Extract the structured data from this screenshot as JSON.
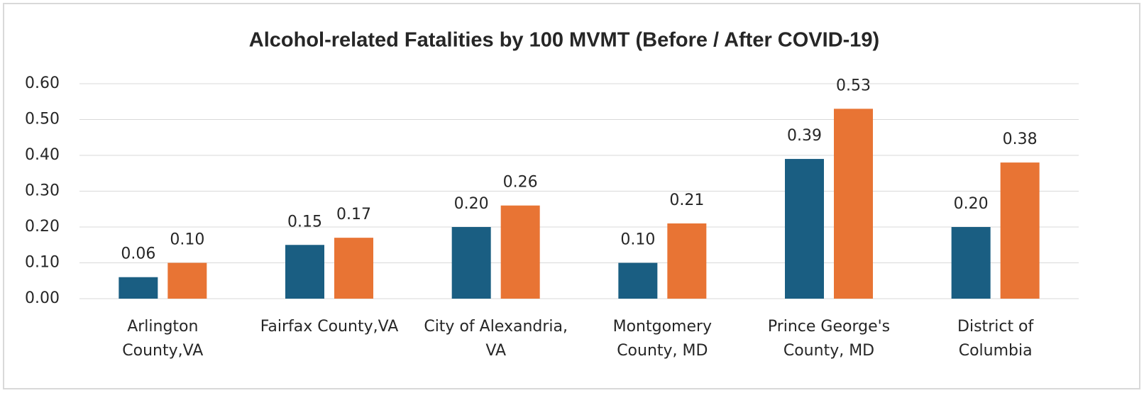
{
  "chart_data": {
    "type": "bar",
    "title": "Alcohol-related Fatalities by 100 MVMT (Before / After COVID-19)",
    "categories": [
      [
        "Arlington",
        "County,VA"
      ],
      [
        "Fairfax County,VA"
      ],
      [
        "City of Alexandria,",
        "VA"
      ],
      [
        "Montgomery",
        "County, MD"
      ],
      [
        "Prince George's",
        "County, MD"
      ],
      [
        "District of",
        "Columbia"
      ]
    ],
    "series": [
      {
        "color": "#1a5e82",
        "values": [
          0.06,
          0.15,
          0.2,
          0.1,
          0.39,
          0.2
        ],
        "value_labels": [
          "0.06",
          "0.15",
          "0.20",
          "0.10",
          "0.39",
          "0.20"
        ]
      },
      {
        "color": "#e87434",
        "values": [
          0.1,
          0.17,
          0.26,
          0.21,
          0.53,
          0.38
        ],
        "value_labels": [
          "0.10",
          "0.17",
          "0.26",
          "0.21",
          "0.53",
          "0.38"
        ]
      }
    ],
    "ylim": [
      0,
      0.6
    ],
    "yticks": [
      {
        "value": 0,
        "label": "0.00"
      },
      {
        "value": 0.1,
        "label": "0.10"
      },
      {
        "value": 0.2,
        "label": "0.20"
      },
      {
        "value": 0.3,
        "label": "0.30"
      },
      {
        "value": 0.4,
        "label": "0.40"
      },
      {
        "value": 0.5,
        "label": "0.50"
      },
      {
        "value": 0.6,
        "label": "0.60"
      }
    ],
    "grid": true
  }
}
